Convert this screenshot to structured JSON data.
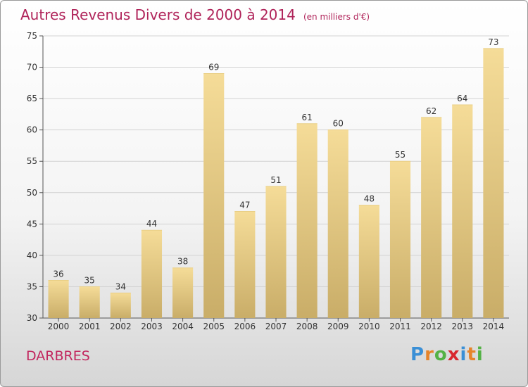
{
  "title": "Autres Revenus Divers de 2000 à 2014",
  "subtitle": "(en milliers d'€)",
  "place": "DARBRES",
  "logo": [
    "P",
    "r",
    "o",
    "x",
    "i",
    "t",
    "i"
  ],
  "colors": {
    "title": "#b0245a",
    "bar_light": "#f5dc98",
    "bar_dark": "#c9ad68",
    "logo": [
      "#3a8fd6",
      "#e6842a",
      "#54b245",
      "#d8282e",
      "#3a8fd6",
      "#e6842a",
      "#54b245"
    ]
  },
  "chart_data": {
    "type": "bar",
    "title": "Autres Revenus Divers de 2000 à 2014",
    "categories": [
      "2000",
      "2001",
      "2002",
      "2003",
      "2004",
      "2005",
      "2006",
      "2007",
      "2008",
      "2009",
      "2010",
      "2011",
      "2012",
      "2013",
      "2014"
    ],
    "values": [
      36,
      35,
      34,
      44,
      38,
      69,
      47,
      51,
      61,
      60,
      48,
      55,
      62,
      64,
      73
    ],
    "ylim": [
      30,
      75
    ],
    "yticks": [
      30,
      35,
      40,
      45,
      50,
      55,
      60,
      65,
      70,
      75
    ],
    "grid": true
  }
}
